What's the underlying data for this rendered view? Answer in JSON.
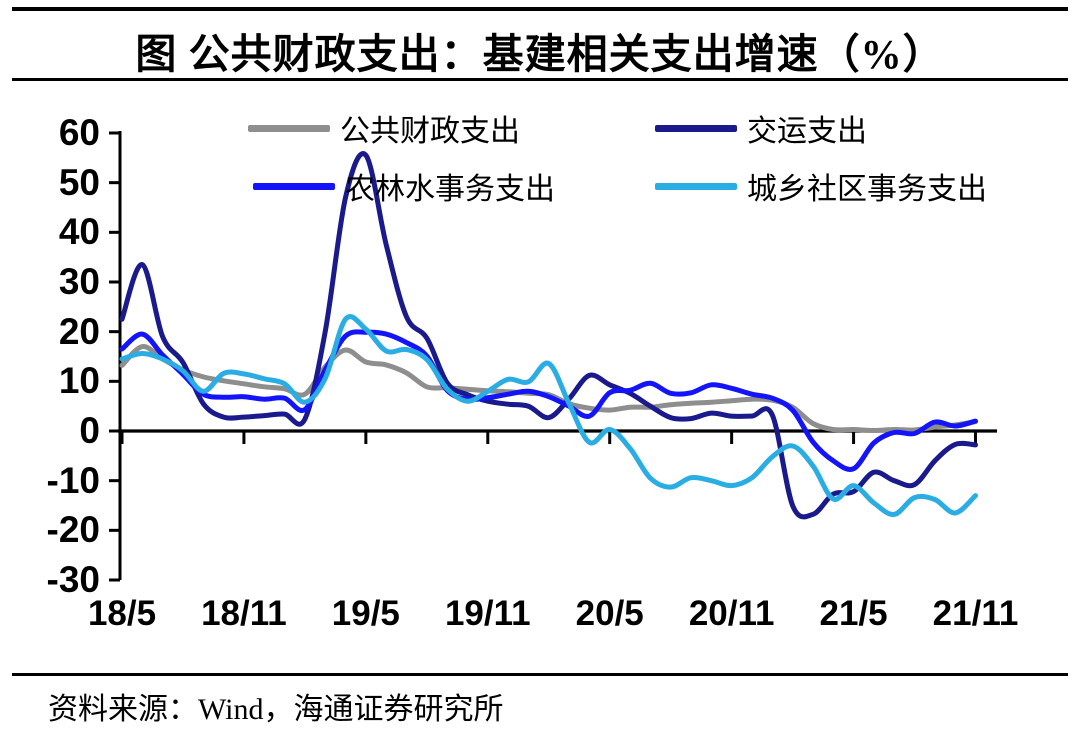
{
  "title": "图 公共财政支出：基建相关支出增速（%）",
  "source": "资料来源：Wind，海通证券研究所",
  "chart_data": {
    "type": "line",
    "title": "公共财政支出：基建相关支出增速（%）",
    "xlabel": "",
    "ylabel": "",
    "ylim": [
      -30,
      60
    ],
    "y_ticks": [
      60,
      50,
      40,
      30,
      20,
      10,
      0,
      -10,
      -20,
      -30
    ],
    "x_tick_labels": [
      "18/5",
      "18/11",
      "19/5",
      "19/11",
      "20/5",
      "20/11",
      "21/5",
      "21/11"
    ],
    "grid": false,
    "legend_position": "top",
    "categories": [
      "18/5",
      "18/6",
      "18/7",
      "18/8",
      "18/9",
      "18/10",
      "18/11",
      "18/12",
      "19/1",
      "19/2",
      "19/3",
      "19/4",
      "19/5",
      "19/6",
      "19/7",
      "19/8",
      "19/9",
      "19/10",
      "19/11",
      "19/12",
      "20/1",
      "20/2",
      "20/3",
      "20/4",
      "20/5",
      "20/6",
      "20/7",
      "20/8",
      "20/9",
      "20/10",
      "20/11",
      "20/12",
      "21/1",
      "21/2",
      "21/3",
      "21/4",
      "21/5",
      "21/6",
      "21/7",
      "21/8",
      "21/9",
      "21/10",
      "21/11"
    ],
    "series": [
      {
        "id": "public-fiscal-expenditure",
        "name": "公共财政支出",
        "color": "#8E8E8E",
        "values": [
          13.2,
          17.0,
          14.5,
          12.3,
          10.9,
          10.1,
          9.5,
          8.9,
          8.5,
          7.4,
          12.9,
          16.3,
          13.9,
          13.3,
          11.7,
          8.9,
          8.7,
          8.4,
          8.1,
          7.9,
          7.6,
          7.3,
          5.5,
          4.6,
          4.2,
          4.8,
          4.8,
          5.3,
          5.6,
          5.8,
          6.1,
          6.4,
          6.2,
          4.8,
          1.5,
          0.3,
          0.3,
          0.1,
          0.3,
          0.2,
          0.8,
          1.2,
          1.9
        ]
      },
      {
        "id": "transport-expenditure",
        "name": "交运支出",
        "color": "#1A1A8C",
        "values": [
          22.5,
          33.5,
          19.0,
          13.8,
          5.5,
          2.8,
          2.8,
          3.1,
          3.4,
          2.4,
          20.0,
          47.0,
          55.5,
          37.5,
          23.0,
          18.7,
          9.7,
          7.3,
          6.0,
          5.4,
          5.0,
          2.7,
          6.5,
          11.2,
          9.3,
          7.6,
          5.0,
          2.7,
          2.5,
          3.6,
          3.0,
          3.0,
          3.2,
          -15.0,
          -16.8,
          -12.7,
          -12.2,
          -8.3,
          -10.0,
          -10.8,
          -6.0,
          -2.7,
          -2.8
        ]
      },
      {
        "id": "agri-forestry-water-expenditure",
        "name": "农林水事务支出",
        "color": "#1414FA",
        "values": [
          16.5,
          19.5,
          15.3,
          11.4,
          7.4,
          6.8,
          6.9,
          6.4,
          6.6,
          4.3,
          12.3,
          19.1,
          19.9,
          19.5,
          17.8,
          15.1,
          8.2,
          6.4,
          6.7,
          7.4,
          8.0,
          6.9,
          5.0,
          3.0,
          7.7,
          8.2,
          9.6,
          7.6,
          7.7,
          9.3,
          8.6,
          7.4,
          6.6,
          4.2,
          -2.2,
          -6.0,
          -7.6,
          -2.4,
          -0.3,
          -0.5,
          1.8,
          1.0,
          2.0
        ]
      },
      {
        "id": "urban-rural-community-expenditure",
        "name": "城乡社区事务支出",
        "color": "#29ADE3",
        "values": [
          14.5,
          15.6,
          14.5,
          12.1,
          8.0,
          11.6,
          11.5,
          10.5,
          9.5,
          5.8,
          10.6,
          22.5,
          20.5,
          16.1,
          16.4,
          14.4,
          8.5,
          6.0,
          8.0,
          10.4,
          9.9,
          13.6,
          5.5,
          -2.3,
          0.3,
          -3.5,
          -9.5,
          -11.3,
          -9.4,
          -10.0,
          -11.0,
          -9.4,
          -5.2,
          -3.0,
          -7.0,
          -13.7,
          -11.0,
          -14.5,
          -16.8,
          -13.4,
          -13.8,
          -16.5,
          -13.0
        ]
      }
    ]
  }
}
